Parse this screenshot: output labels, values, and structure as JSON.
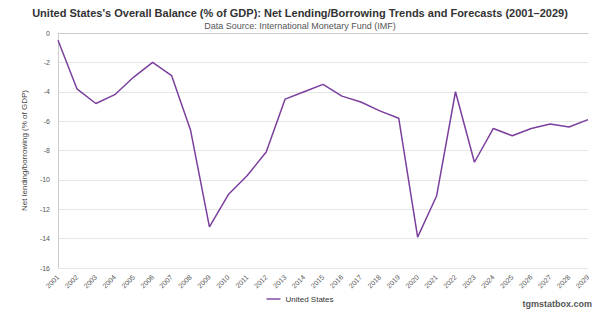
{
  "chart_data": {
    "type": "line",
    "title": "United States's Overall Balance (% of GDP): Net Lending/Borrowing Trends and Forecasts (2001–2029)",
    "subtitle": "Data Source: International Monetary Fund (IMF)",
    "y_label": "Net lending/borrowing (% of GDP)",
    "annotations": [
      "tgmstatbox.com"
    ],
    "categories": [
      "2001",
      "2002",
      "2003",
      "2004",
      "2005",
      "2006",
      "2007",
      "2008",
      "2009",
      "2010",
      "2011",
      "2012",
      "2013",
      "2014",
      "2015",
      "2016",
      "2017",
      "2018",
      "2019",
      "2020",
      "2021",
      "2022",
      "2023",
      "2024",
      "2025",
      "2026",
      "2027",
      "2028",
      "2029"
    ],
    "series": [
      {
        "name": "United States",
        "color": "#7b3f9e",
        "values": [
          -0.5,
          -3.8,
          -4.8,
          -4.2,
          -3.0,
          -2.0,
          -2.9,
          -6.6,
          -13.2,
          -11.0,
          -9.7,
          -8.1,
          -4.5,
          -4.0,
          -3.5,
          -4.3,
          -4.7,
          -5.3,
          -5.8,
          -13.9,
          -11.1,
          -4.0,
          -8.8,
          -6.5,
          -7.0,
          -6.5,
          -6.2,
          -6.4,
          -5.9
        ]
      }
    ],
    "ylim": [
      -16,
      0
    ],
    "yticks": [
      -16,
      -14,
      -12,
      -10,
      -8,
      -6,
      -4,
      -2,
      0
    ],
    "grid": true,
    "legend": "bottom"
  }
}
